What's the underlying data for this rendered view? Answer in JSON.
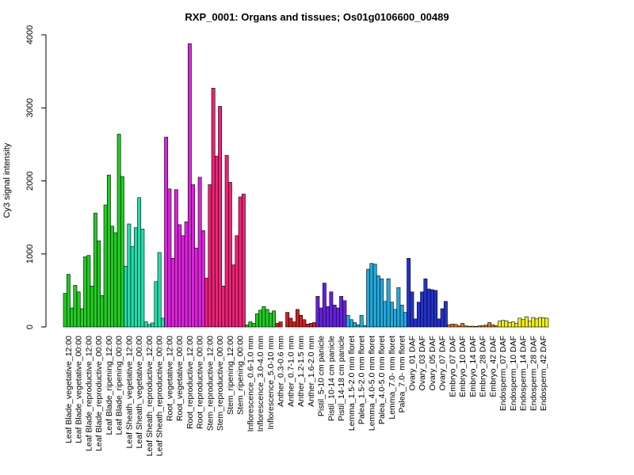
{
  "chart_data": {
    "type": "bar",
    "title": "RXP_0001: Organs and tissues; Os01g0106600_00489",
    "xlabel": "",
    "ylabel": "Cy3 signal intensity",
    "ylim": [
      0,
      4000
    ],
    "yticks": [
      "0",
      "1000",
      "2000",
      "3000",
      "4000"
    ],
    "grid": false,
    "legend": "none",
    "groups": [
      {
        "label": "Leaf Blade_vegetative_12:00",
        "color": "#22cc22",
        "values": [
          460,
          720,
          260
        ]
      },
      {
        "label": "Leaf Blade_vegetative_00:00",
        "color": "#22cc22",
        "values": [
          570,
          480,
          250
        ]
      },
      {
        "label": "Leaf Blade_reproductive_12:00",
        "color": "#22cc22",
        "values": [
          960,
          980,
          560
        ]
      },
      {
        "label": "Leaf Blade_reproductive_00:00",
        "color": "#22cc22",
        "values": [
          1560,
          1180,
          430
        ]
      },
      {
        "label": "Leaf Blade_ripening_12:00",
        "color": "#22cc22",
        "values": [
          1670,
          2080,
          1380
        ]
      },
      {
        "label": "Leaf Blade_ripening_00:00",
        "color": "#22cc22",
        "values": [
          1290,
          2640,
          2060
        ]
      },
      {
        "label": "Leaf Sheath_vegetative_12:00",
        "color": "#22ddaa",
        "values": [
          830,
          1410,
          1100
        ]
      },
      {
        "label": "Leaf Sheath_vegetative_00:00",
        "color": "#22ddaa",
        "values": [
          1360,
          1770,
          1340
        ]
      },
      {
        "label": "Leaf Sheath_reproductive_12:00",
        "color": "#22ddaa",
        "values": [
          70,
          35,
          55
        ]
      },
      {
        "label": "Leaf Sheath_reproductive_00:00",
        "color": "#22ddaa",
        "values": [
          620,
          1020,
          120
        ]
      },
      {
        "label": "Root_vegetative_12:00",
        "color": "#dd22dd",
        "values": [
          2600,
          1890,
          940
        ]
      },
      {
        "label": "Root_vegetative_00:00",
        "color": "#dd22dd",
        "values": [
          1880,
          1400,
          1250
        ]
      },
      {
        "label": "Root_reproductive_12:00",
        "color": "#dd22dd",
        "values": [
          1440,
          3880,
          1950
        ]
      },
      {
        "label": "Root_reproductive_00:00",
        "color": "#dd22dd",
        "values": [
          1080,
          2050,
          1320
        ]
      },
      {
        "label": "Stem_reproductive_12:00",
        "color": "#ee2277",
        "values": [
          670,
          1950,
          3270
        ]
      },
      {
        "label": "Stem_reproductive_00:00",
        "color": "#ee2277",
        "values": [
          2340,
          3020,
          560
        ]
      },
      {
        "label": "Stem_ripening_12:00",
        "color": "#ee2277",
        "values": [
          2350,
          1980,
          850
        ]
      },
      {
        "label": "Stem_ripening_00:00",
        "color": "#ee2277",
        "values": [
          1250,
          1780,
          1820
        ]
      },
      {
        "label": "Inflorescence_0.6-1.0 mm",
        "color": "#22cc22",
        "values": [
          30,
          70,
          50
        ]
      },
      {
        "label": "Inflorescence_3.0-4.0 mm",
        "color": "#22cc22",
        "values": [
          180,
          230,
          280
        ]
      },
      {
        "label": "Inflorescence_5.0-10 mm",
        "color": "#22cc22",
        "values": [
          240,
          190,
          220
        ]
      },
      {
        "label": "Anther_0.3-0.6 mm",
        "color": "#cc2222",
        "values": [
          50,
          70,
          0
        ]
      },
      {
        "label": "Anther_0.7-1.0 mm",
        "color": "#cc2222",
        "values": [
          200,
          120,
          70
        ]
      },
      {
        "label": "Anther_1.2-1.5 mm",
        "color": "#cc2222",
        "values": [
          240,
          160,
          100
        ]
      },
      {
        "label": "Anther_1.6-2.0 mm",
        "color": "#cc2222",
        "values": [
          40,
          50,
          60
        ]
      },
      {
        "label": "Pistil_5-10 cm panicle",
        "color": "#6622dd",
        "values": [
          420,
          260,
          600
        ]
      },
      {
        "label": "Pistil_10-14 cm panicle",
        "color": "#6622dd",
        "values": [
          280,
          480,
          300
        ]
      },
      {
        "label": "Pistil_14-18 cm panicle",
        "color": "#6622dd",
        "values": [
          260,
          420,
          360
        ]
      },
      {
        "label": "Lemma_1.5-2.0 mm floret",
        "color": "#22aadd",
        "values": [
          160,
          100,
          60
        ]
      },
      {
        "label": "Palea_1.5-2.0 mm floret",
        "color": "#22aadd",
        "values": [
          30,
          160,
          20
        ]
      },
      {
        "label": "Lemma_4.0-5.0 mm floret",
        "color": "#22aadd",
        "values": [
          790,
          870,
          860
        ]
      },
      {
        "label": "Palea_4.0-5.0 mm floret",
        "color": "#22aadd",
        "values": [
          700,
          660,
          350
        ]
      },
      {
        "label": "Lemma_7.0- mm floret",
        "color": "#22aadd",
        "values": [
          660,
          340,
          240
        ]
      },
      {
        "label": "Palea_7.0- mm floret",
        "color": "#22aadd",
        "values": [
          540,
          300,
          200
        ]
      },
      {
        "label": "Ovary_01 DAF",
        "color": "#2233cc",
        "values": [
          940,
          480,
          110
        ]
      },
      {
        "label": "Ovary_03 DAF",
        "color": "#2233cc",
        "values": [
          340,
          480,
          660
        ]
      },
      {
        "label": "Ovary_05 DAF",
        "color": "#2233cc",
        "values": [
          520,
          510,
          500
        ]
      },
      {
        "label": "Ovary_07 DAF",
        "color": "#2233cc",
        "values": [
          110,
          250,
          350
        ]
      },
      {
        "label": "Embryo_07 DAF",
        "color": "#dd7722",
        "values": [
          30,
          40,
          35
        ]
      },
      {
        "label": "Embryo_10 DAF",
        "color": "#dd7722",
        "values": [
          15,
          50,
          15
        ]
      },
      {
        "label": "Embryo_14 DAF",
        "color": "#dd7722",
        "values": [
          10,
          10,
          8
        ]
      },
      {
        "label": "Embryo_28 DAF",
        "color": "#dd7722",
        "values": [
          15,
          20,
          25
        ]
      },
      {
        "label": "Embryo_42 DAF",
        "color": "#dd7722",
        "values": [
          60,
          30,
          15
        ]
      },
      {
        "label": "Endosperm_07 DAF",
        "color": "#eeee22",
        "values": [
          80,
          90,
          85
        ]
      },
      {
        "label": "Endosperm_10 DAF",
        "color": "#eeee22",
        "values": [
          60,
          70,
          50
        ]
      },
      {
        "label": "Endosperm_14 DAF",
        "color": "#eeee22",
        "values": [
          120,
          100,
          140
        ]
      },
      {
        "label": "Endosperm_28 DAF",
        "color": "#eeee22",
        "values": [
          80,
          130,
          110
        ]
      },
      {
        "label": "Endosperm_42 DAF",
        "color": "#eeee22",
        "values": [
          130,
          125,
          120
        ]
      }
    ]
  }
}
